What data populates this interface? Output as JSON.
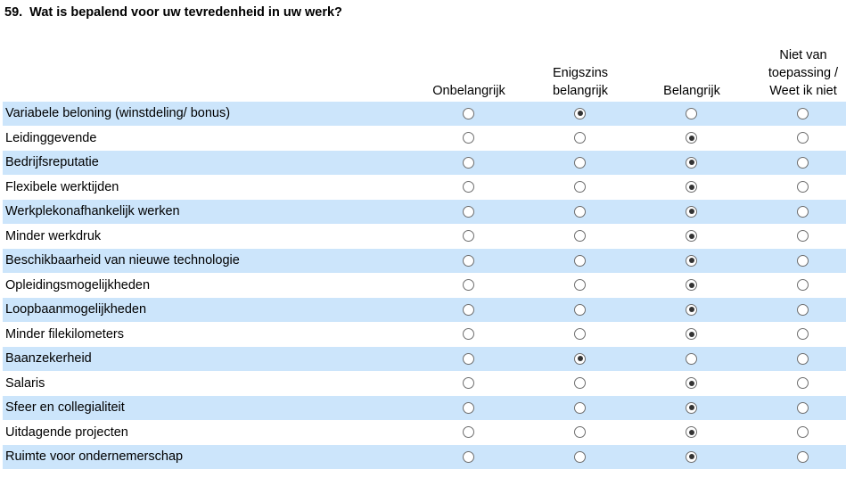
{
  "question": {
    "number": "59.",
    "text": "Wat is bepalend voor uw tevredenheid in uw werk?"
  },
  "columns": [
    {
      "lines": [
        "Onbelangrijk"
      ]
    },
    {
      "lines": [
        "Enigszins",
        "belangrijk"
      ]
    },
    {
      "lines": [
        "Belangrijk"
      ]
    },
    {
      "lines": [
        "Niet van",
        "toepassing /",
        "Weet ik niet"
      ]
    }
  ],
  "rows": [
    {
      "label": "Variabele beloning (winstdeling/ bonus)",
      "selected": 1
    },
    {
      "label": "Leidinggevende",
      "selected": 2
    },
    {
      "label": "Bedrijfsreputatie",
      "selected": 2
    },
    {
      "label": "Flexibele werktijden",
      "selected": 2
    },
    {
      "label": "Werkplekonafhankelijk werken",
      "selected": 2
    },
    {
      "label": "Minder werkdruk",
      "selected": 2
    },
    {
      "label": "Beschikbaarheid van nieuwe technologie",
      "selected": 2
    },
    {
      "label": "Opleidingsmogelijkheden",
      "selected": 2
    },
    {
      "label": "Loopbaanmogelijkheden",
      "selected": 2
    },
    {
      "label": "Minder filekilometers",
      "selected": 2
    },
    {
      "label": "Baanzekerheid",
      "selected": 1
    },
    {
      "label": "Salaris",
      "selected": 2
    },
    {
      "label": "Sfeer en collegialiteit",
      "selected": 2
    },
    {
      "label": "Uitdagende projecten",
      "selected": 2
    },
    {
      "label": "Ruimte voor ondernemerschap",
      "selected": 2
    }
  ],
  "colors": {
    "row_shade": "#cce5fb",
    "radio_border": "#6e6e6e",
    "radio_dot": "#333333"
  }
}
